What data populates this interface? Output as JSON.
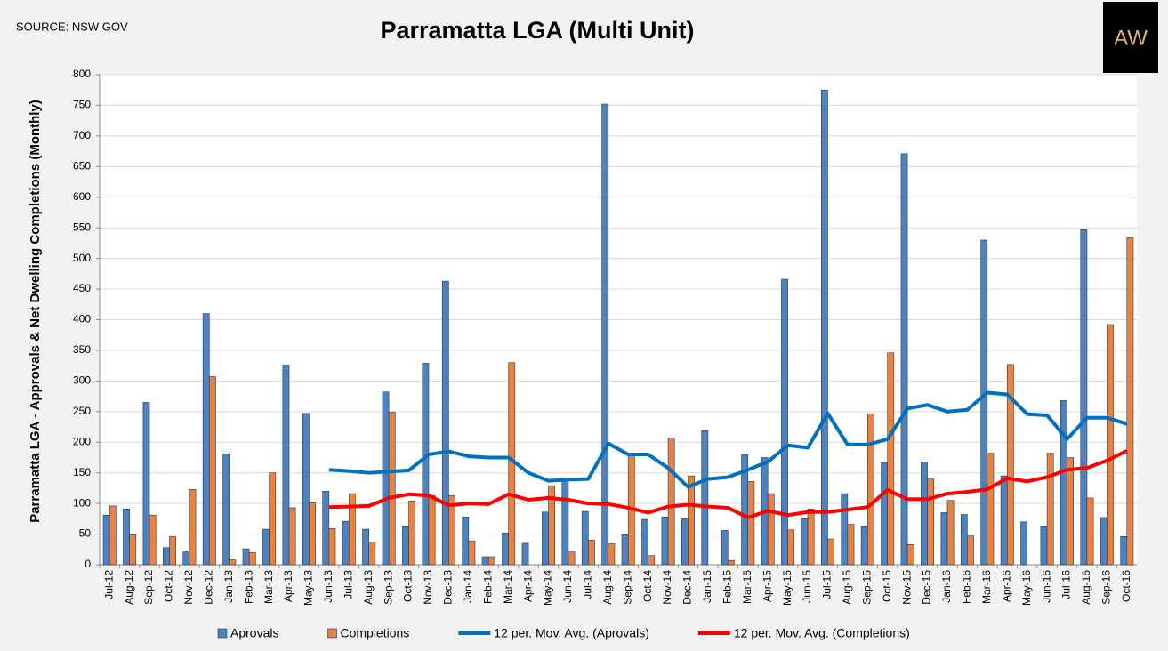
{
  "chart_data": {
    "type": "bar",
    "title": "Parramatta LGA (Multi Unit)",
    "source": "SOURCE: NSW GOV",
    "logo": "AW",
    "ylabel": "Parramatta LGA - Approvals & Net Dwelling Completions (Monthly)",
    "categories": [
      "Jul-12",
      "Aug-12",
      "Sep-12",
      "Oct-12",
      "Nov-12",
      "Dec-12",
      "Jan-13",
      "Feb-13",
      "Mar-13",
      "Apr-13",
      "May-13",
      "Jun-13",
      "Jul-13",
      "Aug-13",
      "Sep-13",
      "Oct-13",
      "Nov-13",
      "Dec-13",
      "Jan-14",
      "Feb-14",
      "Mar-14",
      "Apr-14",
      "May-14",
      "Jun-14",
      "Jul-14",
      "Aug-14",
      "Sep-14",
      "Oct-14",
      "Nov-14",
      "Dec-14",
      "Jan-15",
      "Feb-15",
      "Mar-15",
      "Apr-15",
      "May-15",
      "Jun-15",
      "Jul-15",
      "Aug-15",
      "Sep-15",
      "Oct-15",
      "Nov-15",
      "Dec-15",
      "Jan-16",
      "Feb-16",
      "Mar-16",
      "Apr-16",
      "May-16",
      "Jun-16",
      "Jul-16",
      "Aug-16",
      "Sep-16",
      "Oct-16"
    ],
    "series": [
      {
        "name": "Aprovals",
        "type": "bar",
        "color": "#4f81bd",
        "values": [
          81,
          91,
          265,
          28,
          21,
          410,
          181,
          26,
          58,
          326,
          247,
          120,
          71,
          58,
          282,
          62,
          329,
          463,
          78,
          13,
          52,
          35,
          86,
          140,
          87,
          752,
          49,
          74,
          78,
          75,
          219,
          56,
          180,
          175,
          466,
          75,
          775,
          116,
          62,
          167,
          671,
          168,
          85,
          82,
          530,
          145,
          70,
          62,
          268,
          547,
          77,
          46
        ]
      },
      {
        "name": "Completions",
        "type": "bar",
        "color": "#e9823f",
        "values": [
          96,
          49,
          81,
          46,
          123,
          307,
          8,
          20,
          150,
          93,
          101,
          59,
          116,
          37,
          249,
          104,
          113,
          113,
          39,
          13,
          330,
          0,
          129,
          21,
          40,
          34,
          179,
          15,
          207,
          145,
          0,
          7,
          136,
          116,
          57,
          91,
          42,
          66,
          246,
          346,
          33,
          140,
          105,
          47,
          182,
          327,
          0,
          182,
          175,
          109,
          392,
          534
        ]
      },
      {
        "name": "12 per. Mov. Avg. (Aprovals)",
        "type": "line",
        "color": "#0070c0",
        "values": [
          null,
          null,
          null,
          null,
          null,
          null,
          null,
          null,
          null,
          null,
          null,
          155,
          153,
          150,
          152,
          154,
          180,
          185,
          177,
          175,
          175,
          150,
          137,
          139,
          140,
          198,
          180,
          180,
          158,
          127,
          140,
          143,
          155,
          168,
          195,
          191,
          247,
          196,
          196,
          205,
          255,
          261,
          250,
          253,
          281,
          278,
          246,
          244,
          205,
          240,
          240,
          230
        ]
      },
      {
        "name": "12 per. Mov. Avg. (Completions)",
        "type": "line",
        "color": "#ff0000",
        "values": [
          null,
          null,
          null,
          null,
          null,
          null,
          null,
          null,
          null,
          null,
          null,
          94,
          95,
          96,
          109,
          115,
          113,
          97,
          100,
          99,
          115,
          106,
          109,
          106,
          100,
          99,
          93,
          85,
          95,
          98,
          95,
          93,
          77,
          88,
          81,
          86,
          86,
          90,
          94,
          122,
          107,
          107,
          116,
          119,
          123,
          141,
          136,
          143,
          155,
          158,
          170,
          186
        ]
      }
    ],
    "ylim": [
      0,
      800
    ],
    "yticks": [
      0,
      50,
      100,
      150,
      200,
      250,
      300,
      350,
      400,
      450,
      500,
      550,
      600,
      650,
      700,
      750,
      800
    ],
    "grid": true
  }
}
